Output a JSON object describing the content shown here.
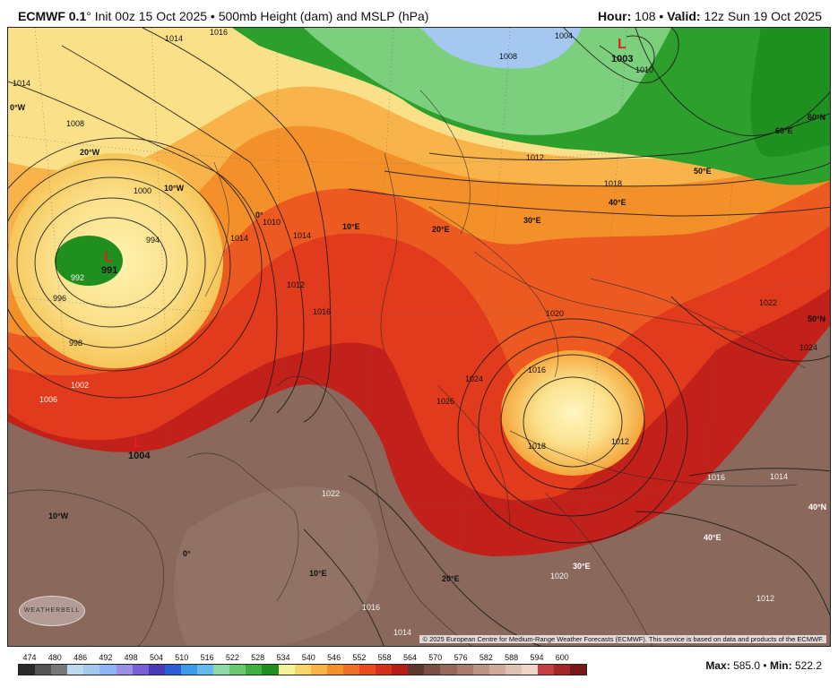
{
  "header": {
    "model": "ECMWF 0.1",
    "init": "° Init 00z 15 Oct 2025 • 500mb Height (dam) and MSLP (hPa)",
    "hour_label": "Hour:",
    "hour_value": "108",
    "valid_label": "Valid:",
    "valid_value": "12z Sun 19 Oct 2025"
  },
  "map": {
    "pressure_labels": [
      "1014",
      "1016",
      "1004",
      "1008",
      "1003",
      "1010",
      "1012",
      "1018",
      "1020",
      "1022",
      "1024",
      "1026",
      "998",
      "1000",
      "994",
      "992",
      "996",
      "1002",
      "1006",
      "991",
      "1014",
      "1016",
      "1012",
      "1022",
      "1024",
      "1016",
      "1014",
      "1012",
      "1020",
      "1016",
      "1014"
    ],
    "lows": [
      {
        "symbol": "L",
        "value": "991"
      },
      {
        "symbol": "L",
        "value": "1003"
      },
      {
        "symbol": "L",
        "value": "1004"
      }
    ],
    "grid_labels": [
      "0°W",
      "20°W",
      "10°W",
      "0°",
      "10°E",
      "20°E",
      "30°E",
      "40°E",
      "50°E",
      "60°E",
      "60°N",
      "50°N",
      "40°N",
      "30°E",
      "40°E",
      "10°W",
      "0°",
      "10°E",
      "20°E",
      "30°E",
      "40°E"
    ],
    "copyright": "© 2025 European Centre for Medium-Range Weather Forecasts (ECMWF). This service is based on data and products of the ECMWF.",
    "logo_text": "WEATHERBELL"
  },
  "colorbar": {
    "labels": [
      "474",
      "480",
      "486",
      "492",
      "498",
      "504",
      "510",
      "516",
      "522",
      "528",
      "534",
      "540",
      "546",
      "552",
      "558",
      "564",
      "570",
      "576",
      "582",
      "588",
      "594",
      "600"
    ],
    "colors": [
      "#2a2a2a",
      "#555555",
      "#777777",
      "#bcd8ee",
      "#a5c8f0",
      "#8fb4f5",
      "#9a8fe8",
      "#7b5fd6",
      "#4a3cb8",
      "#2a5fd8",
      "#3c9be8",
      "#63b8f0",
      "#8fd8a8",
      "#6cc86c",
      "#3fb03f",
      "#1f8f1f",
      "#f6f29a",
      "#f8d66a",
      "#f8b44a",
      "#f4902a",
      "#f0702a",
      "#e84c1e",
      "#d4301a",
      "#b81c14",
      "#5e3a2e",
      "#7a5042",
      "#94685a",
      "#a87c6c",
      "#bc9484",
      "#cfaa9a",
      "#e0c2b2",
      "#f0d4c8",
      "#c24040",
      "#a22828",
      "#7a1818"
    ],
    "max_label": "Max:",
    "max_value": "585.0",
    "min_label": "Min:",
    "min_value": "522.2"
  }
}
